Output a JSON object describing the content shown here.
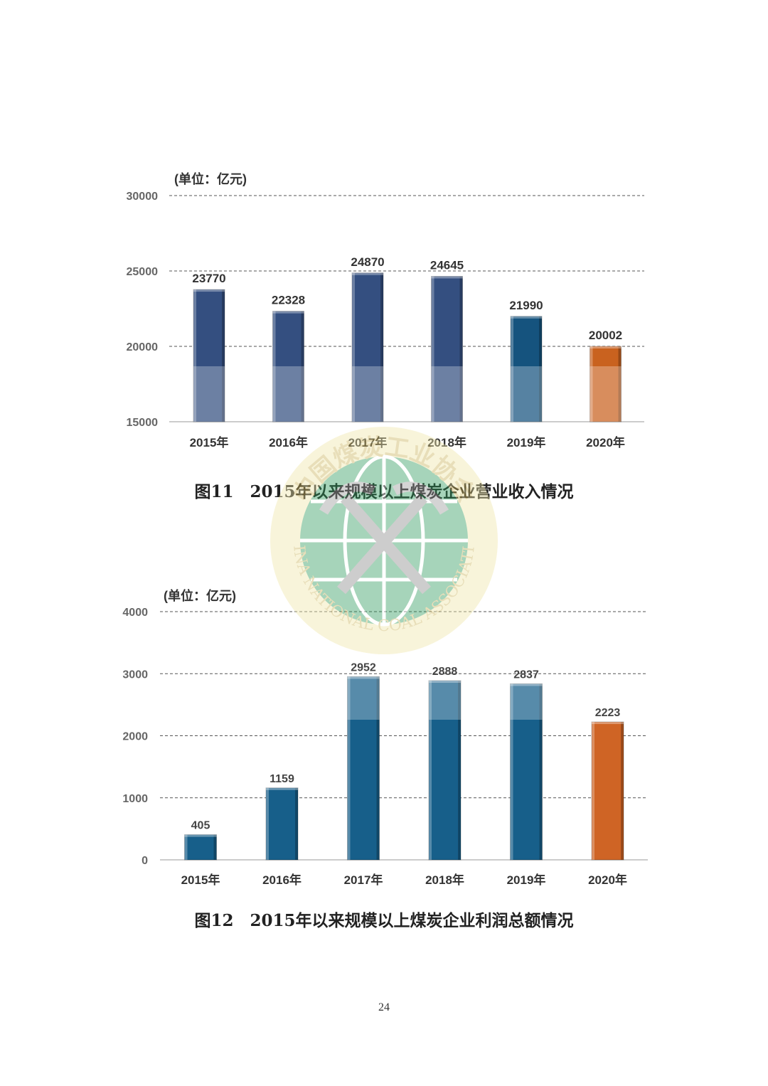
{
  "chart_data": [
    {
      "type": "bar",
      "unit_label": "(单位：亿元)",
      "categories": [
        "2015年",
        "2016年",
        "2017年",
        "2018年",
        "2019年",
        "2020年"
      ],
      "values": [
        23770,
        22328,
        24870,
        24645,
        21990,
        20002
      ],
      "value_labels": [
        "23770",
        "22328",
        "24870",
        "24645",
        "21990",
        "20002"
      ],
      "ylim": [
        15000,
        30000
      ],
      "yticks": [
        "15000",
        "20000",
        "25000",
        "30000"
      ],
      "grid": true,
      "colors": [
        "#344f80",
        "#344f80",
        "#344f80",
        "#344f80",
        "#15537e",
        "#c9621f"
      ]
    },
    {
      "type": "bar",
      "unit_label": "(单位：亿元)",
      "categories": [
        "2015年",
        "2016年",
        "2017年",
        "2018年",
        "2019年",
        "2020年"
      ],
      "values": [
        405,
        1159,
        2952,
        2888,
        2837,
        2223
      ],
      "value_labels": [
        "405",
        "1159",
        "2952",
        "2888",
        "2837",
        "2223"
      ],
      "ylim": [
        0,
        4000
      ],
      "yticks": [
        "0",
        "1000",
        "2000",
        "3000",
        "4000"
      ],
      "grid": true,
      "colors": [
        "#175f8a",
        "#175f8a",
        "#175f8a",
        "#175f8a",
        "#175f8a",
        "#cf6425"
      ]
    }
  ],
  "captions": {
    "fig11": "图11　2015年以来规模以上煤炭企业营业收入情况",
    "fig12": "图12　2015年以来规模以上煤炭企业利润总额情况"
  },
  "watermark": {
    "text_cn": "中国煤炭工业协会",
    "text_en": "CHINA NATIONAL COAL ASSOCIATION"
  },
  "page_number": "24"
}
